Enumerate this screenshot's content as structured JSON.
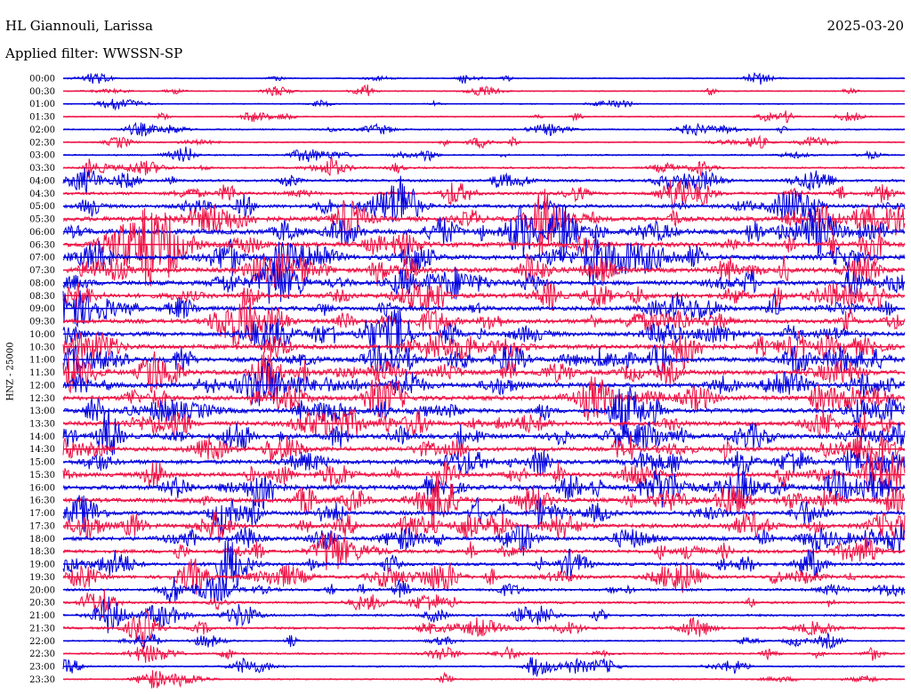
{
  "header": {
    "station": "HL Giannouli, Larissa",
    "date": "2025-03-20",
    "filter": "Applied filter: WWSSN-SP"
  },
  "chart_data": {
    "type": "line",
    "ylabel": "HNZ - 25000",
    "colors": [
      "#0000dd",
      "#ee1144"
    ],
    "rows": [
      {
        "time": "00:00",
        "amp": 0.25
      },
      {
        "time": "00:30",
        "amp": 0.25
      },
      {
        "time": "01:00",
        "amp": 0.25
      },
      {
        "time": "01:30",
        "amp": 0.25
      },
      {
        "time": "02:00",
        "amp": 0.3
      },
      {
        "time": "02:30",
        "amp": 0.3
      },
      {
        "time": "03:00",
        "amp": 0.35
      },
      {
        "time": "03:30",
        "amp": 0.4
      },
      {
        "time": "04:00",
        "amp": 0.55
      },
      {
        "time": "04:30",
        "amp": 0.6
      },
      {
        "time": "05:00",
        "amp": 0.7
      },
      {
        "time": "05:30",
        "amp": 0.9
      },
      {
        "time": "06:00",
        "amp": 1.0
      },
      {
        "time": "06:30",
        "amp": 1.0
      },
      {
        "time": "07:00",
        "amp": 0.95
      },
      {
        "time": "07:30",
        "amp": 0.9
      },
      {
        "time": "08:00",
        "amp": 0.85
      },
      {
        "time": "08:30",
        "amp": 0.85
      },
      {
        "time": "09:00",
        "amp": 0.8
      },
      {
        "time": "09:30",
        "amp": 0.8
      },
      {
        "time": "10:00",
        "amp": 0.8
      },
      {
        "time": "10:30",
        "amp": 0.85
      },
      {
        "time": "11:00",
        "amp": 0.9
      },
      {
        "time": "11:30",
        "amp": 0.9
      },
      {
        "time": "12:00",
        "amp": 0.9
      },
      {
        "time": "12:30",
        "amp": 0.85
      },
      {
        "time": "13:00",
        "amp": 0.85
      },
      {
        "time": "13:30",
        "amp": 0.85
      },
      {
        "time": "14:00",
        "amp": 0.85
      },
      {
        "time": "14:30",
        "amp": 0.8
      },
      {
        "time": "15:00",
        "amp": 0.8
      },
      {
        "time": "15:30",
        "amp": 0.8
      },
      {
        "time": "16:00",
        "amp": 0.85
      },
      {
        "time": "16:30",
        "amp": 0.8
      },
      {
        "time": "17:00",
        "amp": 0.8
      },
      {
        "time": "17:30",
        "amp": 0.8
      },
      {
        "time": "18:00",
        "amp": 0.75
      },
      {
        "time": "18:30",
        "amp": 0.7
      },
      {
        "time": "19:00",
        "amp": 0.65
      },
      {
        "time": "19:30",
        "amp": 0.65
      },
      {
        "time": "20:00",
        "amp": 0.55
      },
      {
        "time": "20:30",
        "amp": 0.5
      },
      {
        "time": "21:00",
        "amp": 0.5
      },
      {
        "time": "21:30",
        "amp": 0.5
      },
      {
        "time": "22:00",
        "amp": 0.35
      },
      {
        "time": "22:30",
        "amp": 0.4
      },
      {
        "time": "23:00",
        "amp": 0.35
      },
      {
        "time": "23:30",
        "amp": 0.3
      }
    ]
  }
}
